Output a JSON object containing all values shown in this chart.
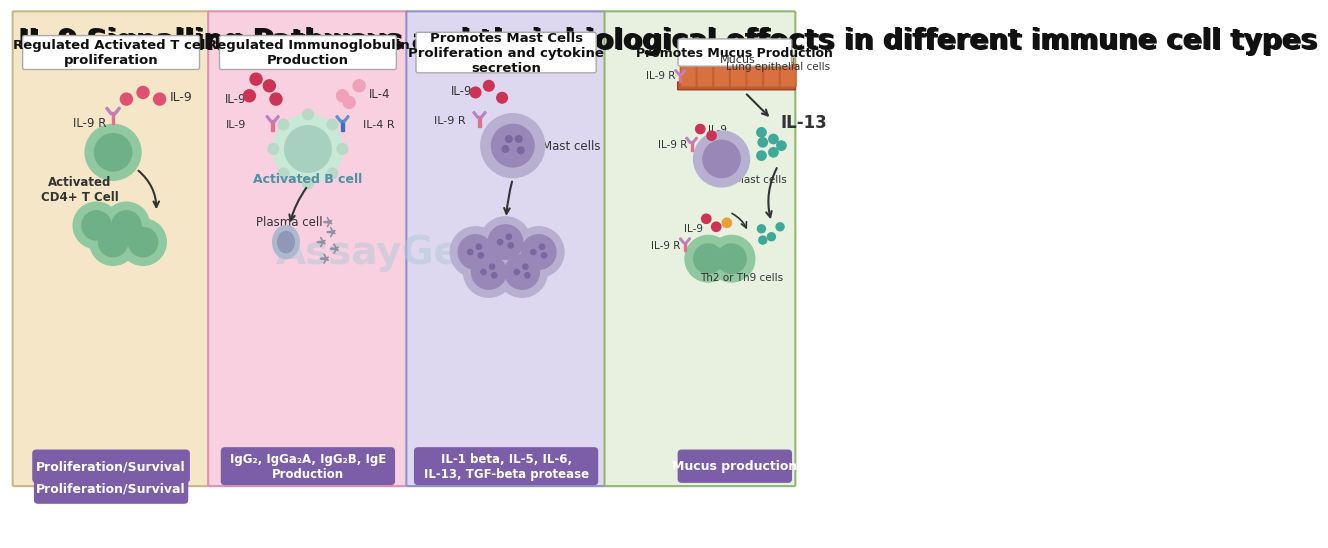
{
  "title": "IL-9 Signalling Pathways and their biological effects in different immune cell types",
  "title_fontsize": 20,
  "title_fontweight": "bold",
  "bg_color": "#ffffff",
  "panel_colors": [
    "#f5e6c8",
    "#f9d0e0",
    "#ddd8f0",
    "#e8f0e0"
  ],
  "panel_border_colors": [
    "#c8b888",
    "#e090b0",
    "#9090c8",
    "#90b870"
  ],
  "panel_titles": [
    "Regulated Activated T cell\nproliferation",
    "Regulated Immunoglobulin\nProduction",
    "Promotes Mast Cells\nProliferation and cytokine\nsecretion",
    "Promotes Mucus Production"
  ],
  "panel_title_box_color": "#ffffff",
  "panel_title_border": "#aaaaaa",
  "bottom_box_color": "#7b5ea7",
  "bottom_box_text_color": "#ffffff",
  "bottom_texts": [
    "Proliferation/Survival",
    "IgG₂, IgGa₂A, IgG₂B, IgE\nProduction",
    "IL-1 beta, IL-5, IL-6,\nIL-13, TGF-beta protease",
    "Mucus production"
  ],
  "cell_green_outer": "#90c8a0",
  "cell_green_inner": "#70b088",
  "cell_purple_outer": "#b090c0",
  "cell_purple_inner": "#9070a8",
  "il9_dot_color": "#e05070",
  "il4_dot_color": "#f0a0b8",
  "il9_label": "IL-9",
  "il9r_label": "IL-9 R",
  "receptor_color": "#c080c0",
  "receptor_stem_color": "#e07090",
  "watermark_color": "#b0c8d8",
  "watermark_text": "AssayGenie",
  "arrow_color": "#333333"
}
